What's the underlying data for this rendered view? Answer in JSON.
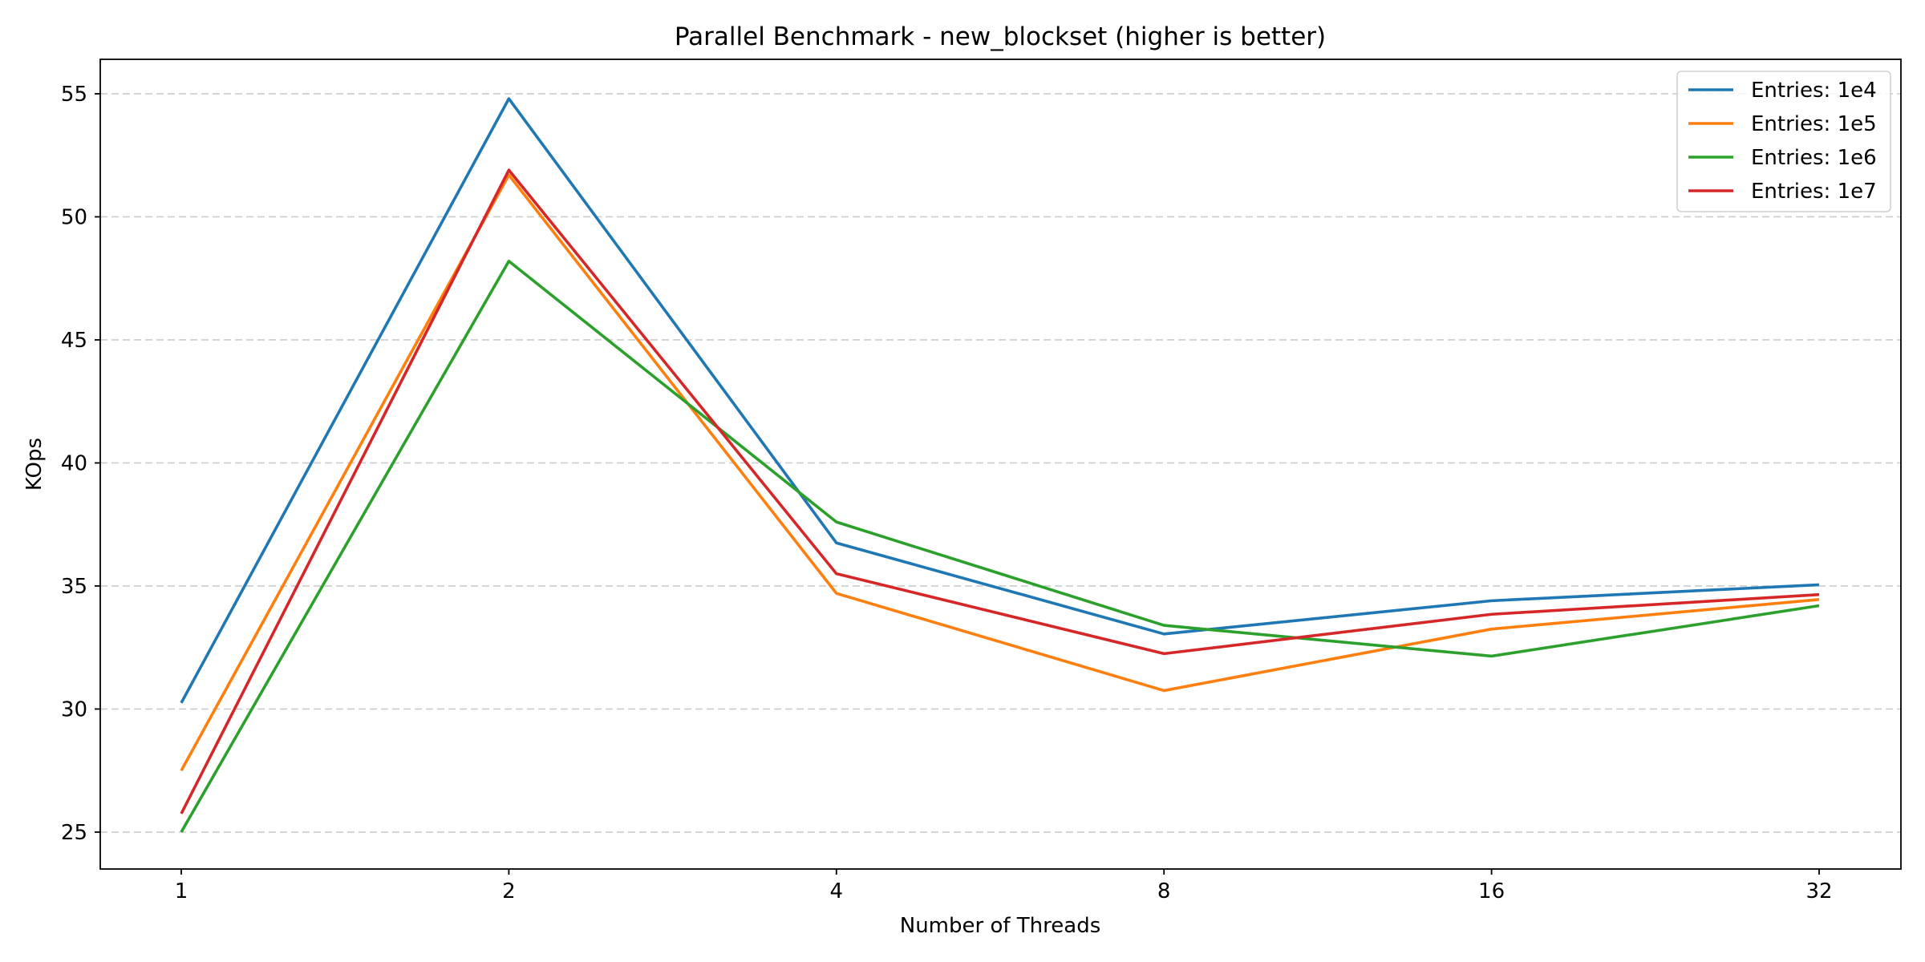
{
  "chart_data": {
    "type": "line",
    "title": "Parallel Benchmark - new_blockset (higher is better)",
    "xlabel": "Number of Threads",
    "ylabel": "KOps",
    "x": [
      "1",
      "2",
      "4",
      "8",
      "16",
      "32"
    ],
    "yticks": [
      25,
      30,
      35,
      40,
      45,
      50,
      55
    ],
    "ylim": [
      23.5,
      56.4
    ],
    "grid": "y-dashed",
    "legend_position": "top-right",
    "series": [
      {
        "name": "Entries: 1e4",
        "color": "#1f77b4",
        "values": [
          30.25,
          54.8,
          36.75,
          33.05,
          34.4,
          35.05
        ]
      },
      {
        "name": "Entries: 1e5",
        "color": "#ff7f0e",
        "values": [
          27.5,
          51.7,
          34.7,
          30.75,
          33.25,
          34.45
        ]
      },
      {
        "name": "Entries: 1e6",
        "color": "#2ca02c",
        "values": [
          25.0,
          48.2,
          37.6,
          33.4,
          32.15,
          34.2
        ]
      },
      {
        "name": "Entries: 1e7",
        "color": "#d62728",
        "values": [
          25.75,
          51.9,
          35.5,
          32.25,
          33.85,
          34.65
        ]
      }
    ]
  }
}
